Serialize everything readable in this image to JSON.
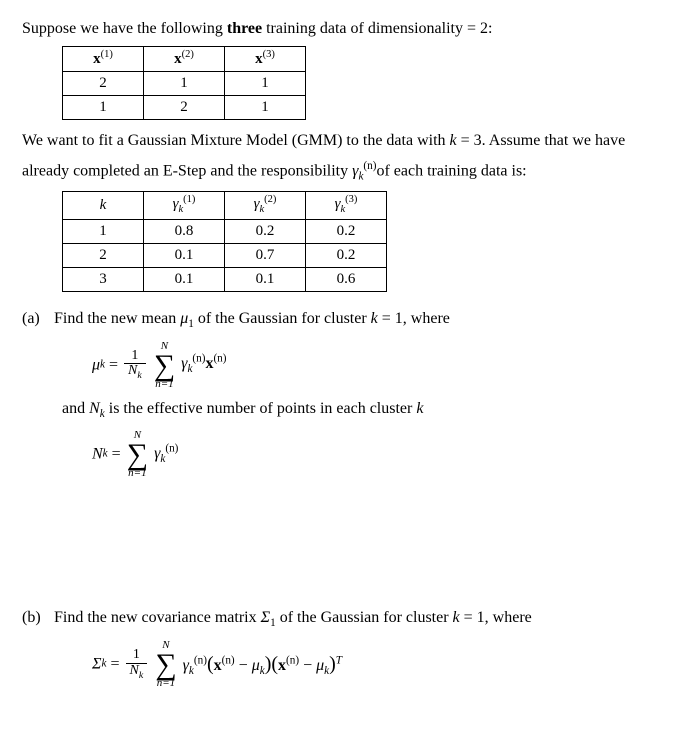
{
  "table_border_color": "#000000",
  "intro": {
    "line1_pre": "Suppose we have the following ",
    "line1_bold": "three",
    "line1_post": " training data of dimensionality = 2:"
  },
  "table1": {
    "headers": [
      "x",
      "x",
      "x"
    ],
    "header_sups": [
      "(1)",
      "(2)",
      "(3)"
    ],
    "rows": [
      [
        "2",
        "1",
        "1"
      ],
      [
        "1",
        "2",
        "1"
      ]
    ]
  },
  "para2": {
    "line1": "We want to fit a Gaussian Mixture Model (GMM) to the data with ",
    "k_expr": "k",
    "k_val": " = 3. Assume that we have",
    "line2_pre": "already completed an E-Step and the responsibility ",
    "gamma": "γ",
    "gamma_sub": "k",
    "gamma_sup": "(n)",
    "line2_post": "of each training data is:"
  },
  "table2": {
    "col0": "k",
    "gamma_base": "γ",
    "gamma_sub": "k",
    "header_sups": [
      "(1)",
      "(2)",
      "(3)"
    ],
    "rows": [
      [
        "1",
        "0.8",
        "0.2",
        "0.2"
      ],
      [
        "2",
        "0.1",
        "0.7",
        "0.2"
      ],
      [
        "3",
        "0.1",
        "0.1",
        "0.6"
      ]
    ]
  },
  "qa": {
    "label": "(a)",
    "text_pre": "Find the new mean ",
    "mu": "μ",
    "mu_sub": "1",
    "text_mid": " of the Gaussian for cluster ",
    "k": "k",
    "eq": " = 1, where"
  },
  "formula_mu": {
    "lhs_mu": "μ",
    "lhs_sub": "k",
    "eq": " = ",
    "frac_num": "1",
    "frac_den_N": "N",
    "frac_den_sub": "k",
    "sum_top": "N",
    "sum_bot": "n=1",
    "r_gamma": "γ",
    "r_gamma_sub": "k",
    "r_gamma_sup": "(n)",
    "x": "x",
    "x_sup": "(n)"
  },
  "and_line": {
    "pre": "and ",
    "N": "N",
    "N_sub": "k",
    "post": " is the effective number of points in each cluster ",
    "k": "k"
  },
  "formula_N": {
    "lhs_N": "N",
    "lhs_sub": "k",
    "eq": " = ",
    "sum_top": "N",
    "sum_bot": "n=1",
    "gamma": "γ",
    "gamma_sub": "k",
    "gamma_sup": "(n)"
  },
  "qb": {
    "label": "(b)",
    "text_pre": "Find the new covariance matrix ",
    "Sigma": "Σ",
    "Sigma_sub": "1",
    "text_mid": " of the Gaussian for cluster ",
    "k": "k",
    "eq": " = 1, where"
  },
  "formula_sigma": {
    "lhs_S": "Σ",
    "lhs_sub": "k",
    "eq": " = ",
    "frac_num": "1",
    "frac_den_N": "N",
    "frac_den_sub": "k",
    "sum_top": "N",
    "sum_bot": "n=1",
    "gamma": "γ",
    "gamma_sub": "k",
    "gamma_sup": "(n)",
    "lp1": "(",
    "x1": "x",
    "x1_sup": "(n)",
    "minus": " − ",
    "mu1": "μ",
    "mu1_sub": "k",
    "rp1": ")",
    "lp2": "(",
    "x2": "x",
    "x2_sup": "(n)",
    "mu2": "μ",
    "mu2_sub": "k",
    "rp2": ")",
    "T": "T"
  }
}
